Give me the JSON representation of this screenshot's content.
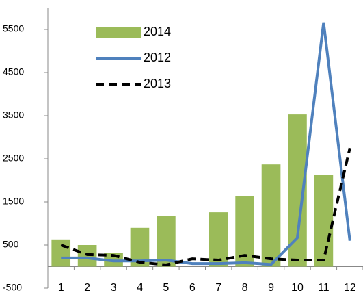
{
  "chart_data": {
    "type": "bar-line",
    "categories": [
      "1",
      "2",
      "3",
      "4",
      "5",
      "6",
      "7",
      "8",
      "9",
      "10",
      "11",
      "12"
    ],
    "series": [
      {
        "name": "2014",
        "type": "bar",
        "color": "#9bbb59",
        "values": [
          630,
          500,
          320,
          900,
          1180,
          null,
          1260,
          1640,
          2370,
          3530,
          2120,
          null
        ]
      },
      {
        "name": "2012",
        "type": "line",
        "color": "#4f81bd",
        "values": [
          200,
          200,
          130,
          130,
          150,
          70,
          70,
          90,
          50,
          670,
          5660,
          600
        ]
      },
      {
        "name": "2013",
        "type": "dashed-line",
        "color": "#000000",
        "values": [
          500,
          280,
          260,
          100,
          40,
          180,
          150,
          260,
          180,
          150,
          150,
          2750
        ]
      }
    ],
    "ylim": [
      -500,
      6000
    ],
    "yticks": [
      -500,
      500,
      1500,
      2500,
      3500,
      4500,
      5500
    ],
    "legend": "upper left"
  }
}
